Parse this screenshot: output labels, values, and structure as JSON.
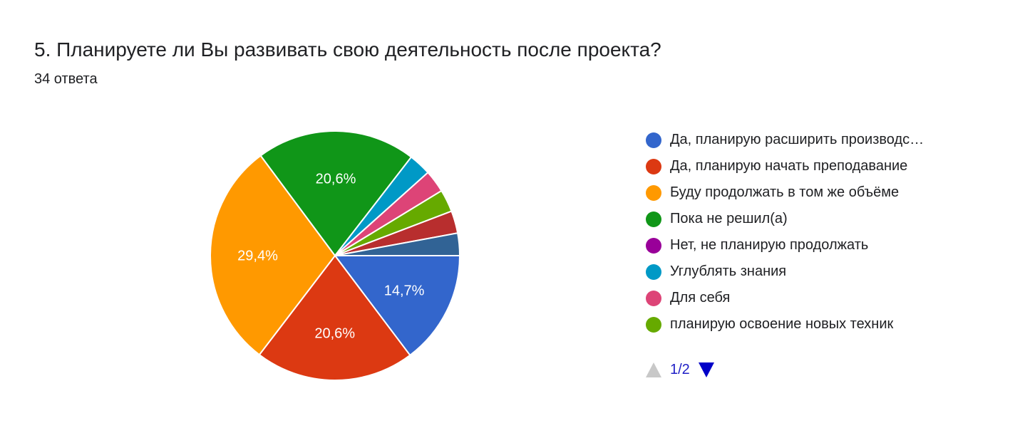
{
  "title": "5. Планируете ли Вы развивать свою деятельность после проекта?",
  "subtitle": "34 ответа",
  "chart_data": {
    "type": "pie",
    "total_responses": 34,
    "slices": [
      {
        "label": "Да, планирую расширить производс…",
        "value": 14.7,
        "color": "#3366cc",
        "data_label": "14,7%"
      },
      {
        "label": "Да, планирую начать преподавание",
        "value": 20.6,
        "color": "#dc3912",
        "data_label": "20,6%"
      },
      {
        "label": "Буду продолжать в том же объёме",
        "value": 29.4,
        "color": "#ff9900",
        "data_label": "29,4%"
      },
      {
        "label": "Пока не решил(а)",
        "value": 20.6,
        "color": "#109618",
        "data_label": "20,6%"
      },
      {
        "label": "Нет, не планирую продолжать",
        "value": 0,
        "color": "#990099",
        "data_label": ""
      },
      {
        "label": "Углублять знания",
        "value": 2.9,
        "color": "#0099c6",
        "data_label": ""
      },
      {
        "label": "Для себя",
        "value": 2.9,
        "color": "#dd4477",
        "data_label": ""
      },
      {
        "label": "планирую освоение новых техник",
        "value": 2.9,
        "color": "#66aa00",
        "data_label": ""
      },
      {
        "label": "",
        "value": 2.9,
        "color": "#b82e2e",
        "data_label": ""
      },
      {
        "label": "",
        "value": 2.9,
        "color": "#316395",
        "data_label": ""
      }
    ],
    "legend_placement": "right"
  },
  "legend_visible_count": 8,
  "pager": {
    "label": "1/2",
    "prev_icon": "triangle-up-icon",
    "next_icon": "triangle-down-icon"
  }
}
